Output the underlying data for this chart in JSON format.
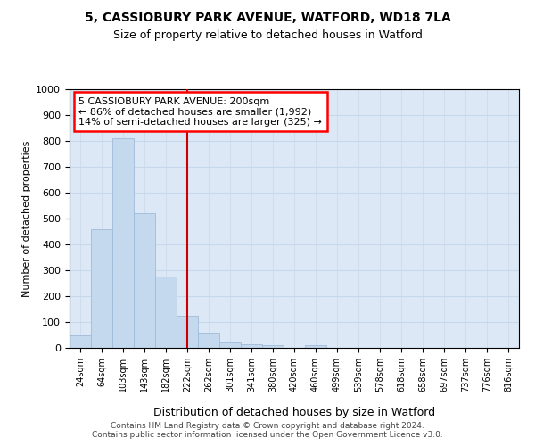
{
  "title_line1": "5, CASSIOBURY PARK AVENUE, WATFORD, WD18 7LA",
  "title_line2": "Size of property relative to detached houses in Watford",
  "xlabel": "Distribution of detached houses by size in Watford",
  "ylabel": "Number of detached properties",
  "categories": [
    "24sqm",
    "64sqm",
    "103sqm",
    "143sqm",
    "182sqm",
    "222sqm",
    "262sqm",
    "301sqm",
    "341sqm",
    "380sqm",
    "420sqm",
    "460sqm",
    "499sqm",
    "539sqm",
    "578sqm",
    "618sqm",
    "658sqm",
    "697sqm",
    "737sqm",
    "776sqm",
    "816sqm"
  ],
  "values": [
    47,
    460,
    810,
    520,
    275,
    125,
    60,
    25,
    15,
    12,
    0,
    12,
    0,
    0,
    0,
    0,
    0,
    0,
    0,
    0,
    0
  ],
  "bar_color": "#c5d9ee",
  "bar_edge_color": "#a0bcd8",
  "vline_color": "#cc0000",
  "vline_x_index": 5.0,
  "annotation_text": "5 CASSIOBURY PARK AVENUE: 200sqm\n← 86% of detached houses are smaller (1,992)\n14% of semi-detached houses are larger (325) →",
  "ylim": [
    0,
    1000
  ],
  "yticks": [
    0,
    100,
    200,
    300,
    400,
    500,
    600,
    700,
    800,
    900,
    1000
  ],
  "grid_color": "#c8d8ec",
  "background_color": "#dce8f5",
  "footer_line1": "Contains HM Land Registry data © Crown copyright and database right 2024.",
  "footer_line2": "Contains public sector information licensed under the Open Government Licence v3.0."
}
